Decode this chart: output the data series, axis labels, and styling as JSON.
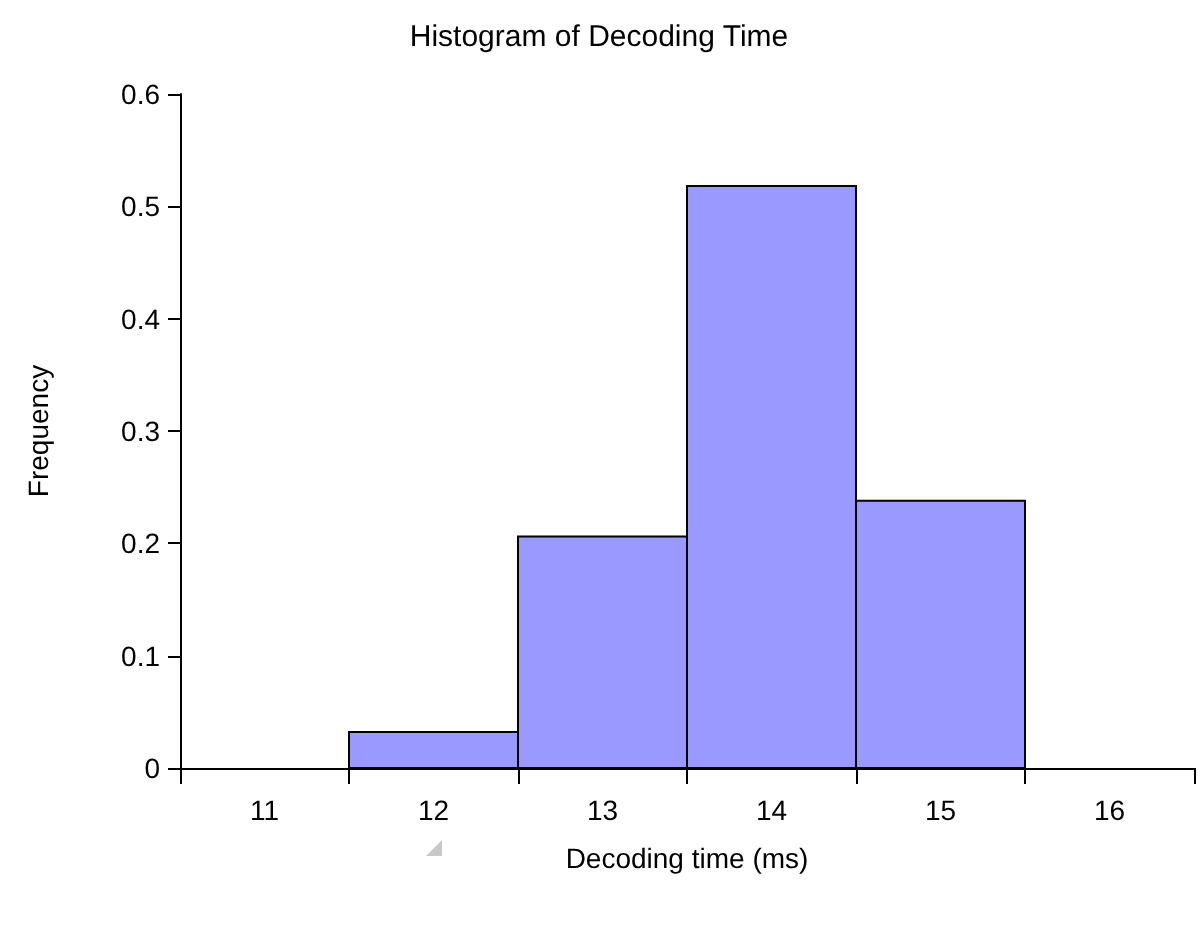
{
  "chart_data": {
    "type": "histogram",
    "title": "Histogram of Decoding Time",
    "xlabel": "Decoding time (ms)",
    "ylabel": "Frequency",
    "bins": [
      11.5,
      12.5,
      13.5,
      14.5,
      15.5
    ],
    "values": [
      0.032,
      0.206,
      0.518,
      0.238
    ],
    "color": "#9999ff",
    "xlim": [
      10.5,
      16.5
    ],
    "xticks": [
      {
        "value": 10.5,
        "label": null
      },
      11,
      {
        "value": 11.5,
        "label": null
      },
      12,
      {
        "value": 12.5,
        "label": null
      },
      13,
      {
        "value": 13.5,
        "label": null
      },
      14,
      {
        "value": 14.5,
        "label": null
      },
      15,
      {
        "value": 15.5,
        "label": null
      },
      16,
      {
        "value": 16.5,
        "label": null
      }
    ],
    "ylim": [
      0,
      0.6
    ],
    "yticks": [
      0,
      0.1,
      0.2,
      0.3,
      0.4,
      0.5,
      0.6
    ],
    "grid": false
  }
}
